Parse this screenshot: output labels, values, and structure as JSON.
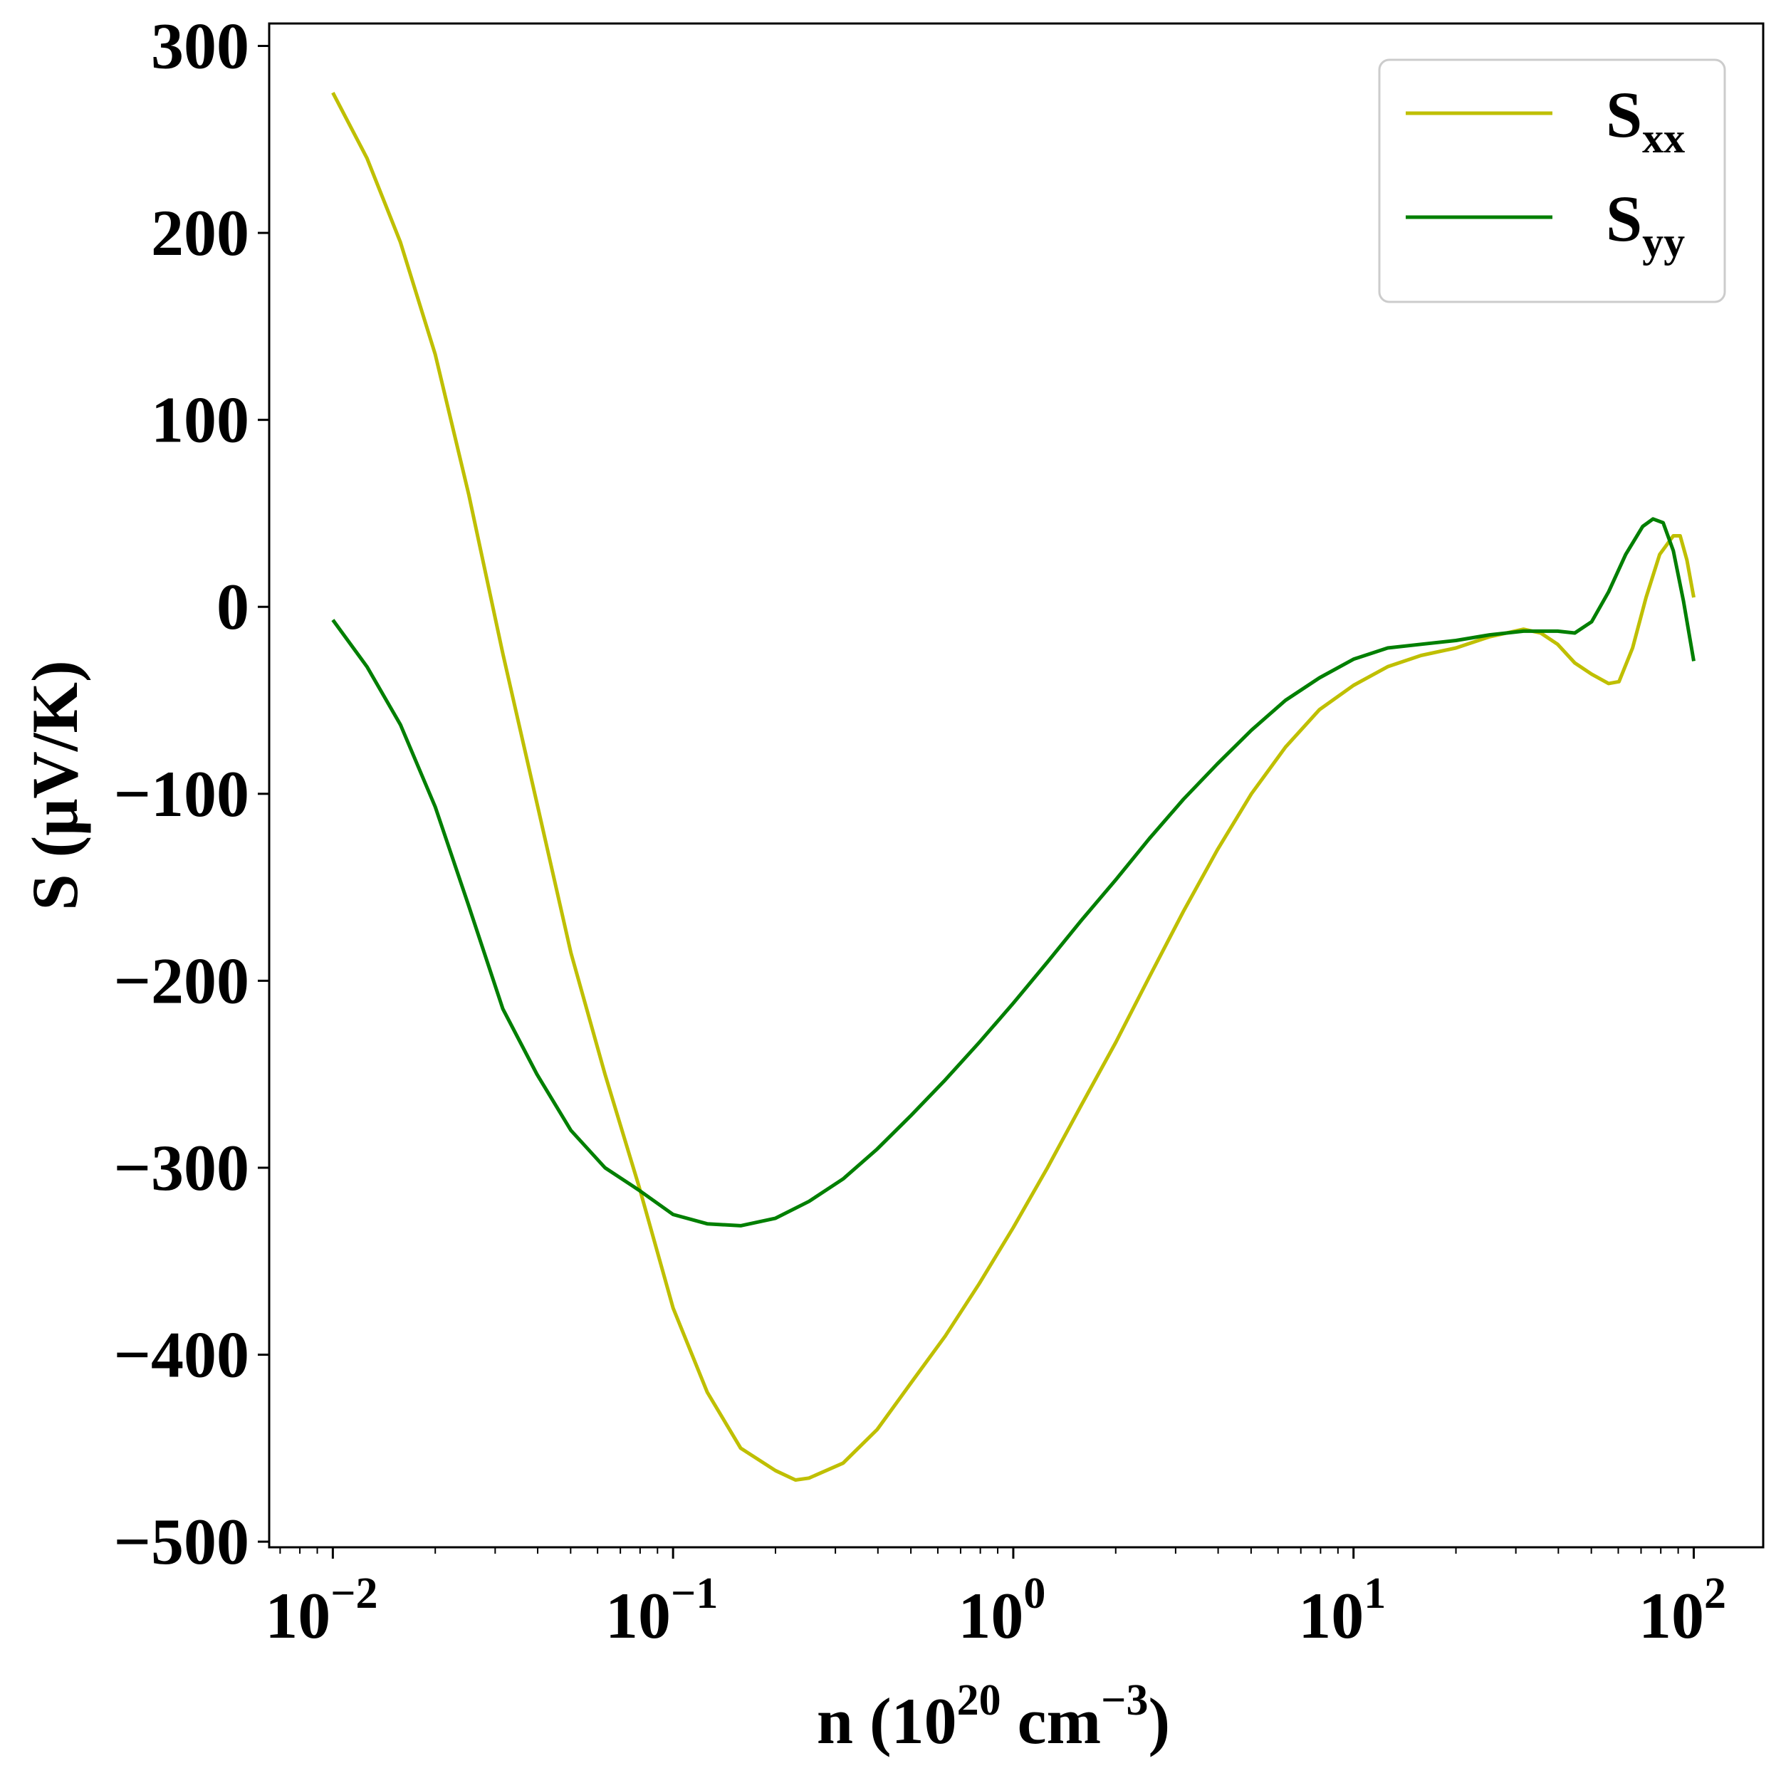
{
  "chart_data": {
    "type": "line",
    "xscale": "log",
    "xlim": [
      0.0065,
      160
    ],
    "ylim": [
      -503,
      312
    ],
    "xlabel": {
      "base": "n (10",
      "sup1": "20",
      "mid": " cm",
      "sup2": "−3",
      "end": ")"
    },
    "ylabel": "S (μV/K)",
    "x_ticks": [
      {
        "value": 0.01,
        "base": "10",
        "exp": "−2"
      },
      {
        "value": 0.1,
        "base": "10",
        "exp": "−1"
      },
      {
        "value": 1,
        "base": "10",
        "exp": "0"
      },
      {
        "value": 10,
        "base": "10",
        "exp": "1"
      },
      {
        "value": 100,
        "base": "10",
        "exp": "2"
      }
    ],
    "y_ticks": [
      {
        "value": 300,
        "label": "300"
      },
      {
        "value": 200,
        "label": "200"
      },
      {
        "value": 100,
        "label": "100"
      },
      {
        "value": 0,
        "label": "0"
      },
      {
        "value": -100,
        "label": "−100"
      },
      {
        "value": -200,
        "label": "−200"
      },
      {
        "value": -300,
        "label": "−300"
      },
      {
        "value": -400,
        "label": "−400"
      },
      {
        "value": -500,
        "label": "−500"
      }
    ],
    "grid": false,
    "legend_position": "top-right",
    "series": [
      {
        "name": "S",
        "sub": "xx",
        "color": "#bfbf00",
        "points": [
          [
            0.01,
            275
          ],
          [
            0.0126,
            240
          ],
          [
            0.0158,
            195
          ],
          [
            0.02,
            135
          ],
          [
            0.0251,
            60
          ],
          [
            0.0316,
            -25
          ],
          [
            0.0398,
            -105
          ],
          [
            0.0501,
            -185
          ],
          [
            0.0631,
            -250
          ],
          [
            0.0794,
            -310
          ],
          [
            0.1,
            -375
          ],
          [
            0.126,
            -420
          ],
          [
            0.158,
            -450
          ],
          [
            0.2,
            -462
          ],
          [
            0.229,
            -467
          ],
          [
            0.251,
            -466
          ],
          [
            0.316,
            -458
          ],
          [
            0.398,
            -440
          ],
          [
            0.501,
            -415
          ],
          [
            0.631,
            -390
          ],
          [
            0.794,
            -362
          ],
          [
            1.0,
            -332
          ],
          [
            1.26,
            -300
          ],
          [
            1.58,
            -267
          ],
          [
            2.0,
            -233
          ],
          [
            2.51,
            -198
          ],
          [
            3.16,
            -163
          ],
          [
            3.98,
            -130
          ],
          [
            5.01,
            -100
          ],
          [
            6.31,
            -75
          ],
          [
            7.94,
            -55
          ],
          [
            10.0,
            -42
          ],
          [
            12.6,
            -32
          ],
          [
            15.8,
            -26
          ],
          [
            20.0,
            -22
          ],
          [
            25.1,
            -16
          ],
          [
            31.6,
            -12
          ],
          [
            35.5,
            -14
          ],
          [
            39.8,
            -20
          ],
          [
            44.7,
            -30
          ],
          [
            50.1,
            -36
          ],
          [
            56.2,
            -41
          ],
          [
            60.3,
            -40
          ],
          [
            66.1,
            -22
          ],
          [
            72.4,
            5
          ],
          [
            79.4,
            28
          ],
          [
            87.1,
            38
          ],
          [
            91.2,
            38
          ],
          [
            95.5,
            25
          ],
          [
            100.0,
            5
          ]
        ]
      },
      {
        "name": "S",
        "sub": "yy",
        "color": "#007f00",
        "points": [
          [
            0.01,
            -7
          ],
          [
            0.0126,
            -32
          ],
          [
            0.0158,
            -63
          ],
          [
            0.02,
            -107
          ],
          [
            0.0251,
            -160
          ],
          [
            0.0316,
            -215
          ],
          [
            0.0398,
            -250
          ],
          [
            0.0501,
            -280
          ],
          [
            0.0631,
            -300
          ],
          [
            0.0794,
            -312
          ],
          [
            0.1,
            -325
          ],
          [
            0.126,
            -330
          ],
          [
            0.158,
            -331
          ],
          [
            0.2,
            -327
          ],
          [
            0.251,
            -318
          ],
          [
            0.316,
            -306
          ],
          [
            0.398,
            -290
          ],
          [
            0.501,
            -272
          ],
          [
            0.631,
            -253
          ],
          [
            0.794,
            -233
          ],
          [
            1.0,
            -212
          ],
          [
            1.26,
            -190
          ],
          [
            1.58,
            -168
          ],
          [
            2.0,
            -146
          ],
          [
            2.51,
            -124
          ],
          [
            3.16,
            -103
          ],
          [
            3.98,
            -84
          ],
          [
            5.01,
            -66
          ],
          [
            6.31,
            -50
          ],
          [
            7.94,
            -38
          ],
          [
            10.0,
            -28
          ],
          [
            12.6,
            -22
          ],
          [
            15.8,
            -20
          ],
          [
            20.0,
            -18
          ],
          [
            25.1,
            -15
          ],
          [
            31.6,
            -13
          ],
          [
            39.8,
            -13
          ],
          [
            44.7,
            -14
          ],
          [
            50.1,
            -8
          ],
          [
            56.2,
            8
          ],
          [
            63.1,
            28
          ],
          [
            70.8,
            43
          ],
          [
            75.9,
            47
          ],
          [
            81.3,
            45
          ],
          [
            87.1,
            30
          ],
          [
            93.3,
            3
          ],
          [
            100.0,
            -29
          ]
        ]
      }
    ]
  }
}
